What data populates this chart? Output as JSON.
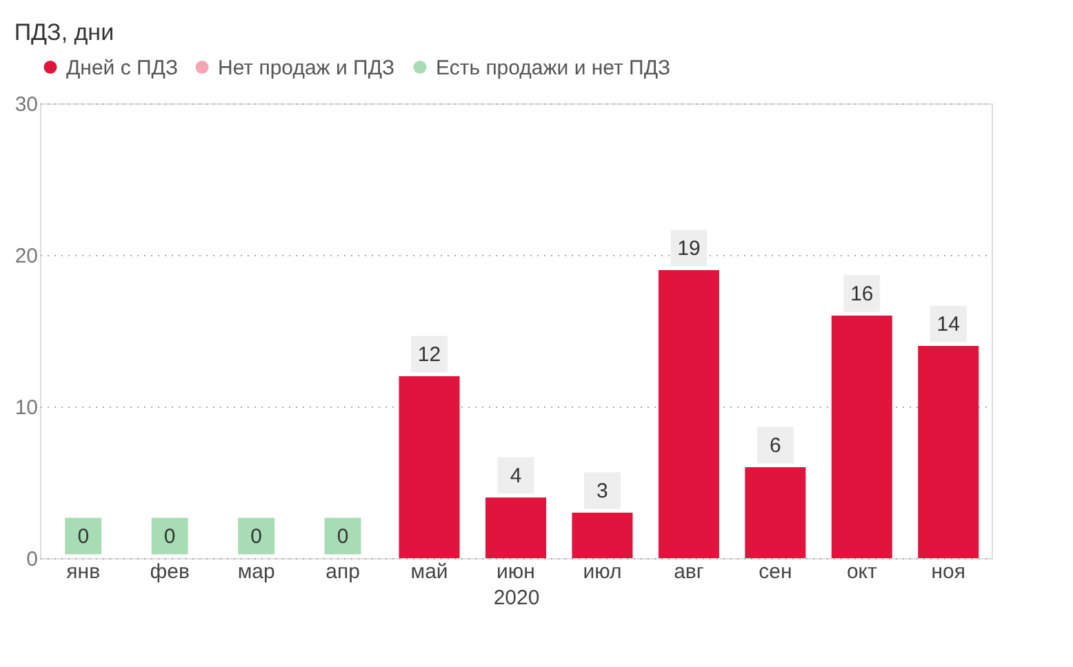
{
  "chart_data": {
    "type": "bar",
    "title": "ПДЗ, дни",
    "xlabel": "2020",
    "categories": [
      "янв",
      "фев",
      "мар",
      "апр",
      "май",
      "июн",
      "июл",
      "авг",
      "сен",
      "окт",
      "ноя"
    ],
    "series": [
      {
        "name": "Дней с ПДЗ",
        "color": "#e0143c",
        "values": [
          null,
          null,
          null,
          null,
          12,
          4,
          3,
          19,
          6,
          16,
          14
        ]
      },
      {
        "name": "Нет продаж и ПДЗ",
        "color": "#f4a6b4",
        "values": [
          null,
          null,
          null,
          null,
          null,
          null,
          null,
          null,
          null,
          null,
          null
        ]
      },
      {
        "name": "Есть продажи и нет ПДЗ",
        "color": "#a8dcb5",
        "values": [
          0,
          0,
          0,
          0,
          null,
          null,
          null,
          null,
          null,
          null,
          null
        ]
      }
    ],
    "ylim": [
      0,
      30
    ],
    "yticks": [
      0,
      10,
      20,
      30
    ],
    "grid": "y",
    "legend": "top left",
    "data_labels": true
  }
}
